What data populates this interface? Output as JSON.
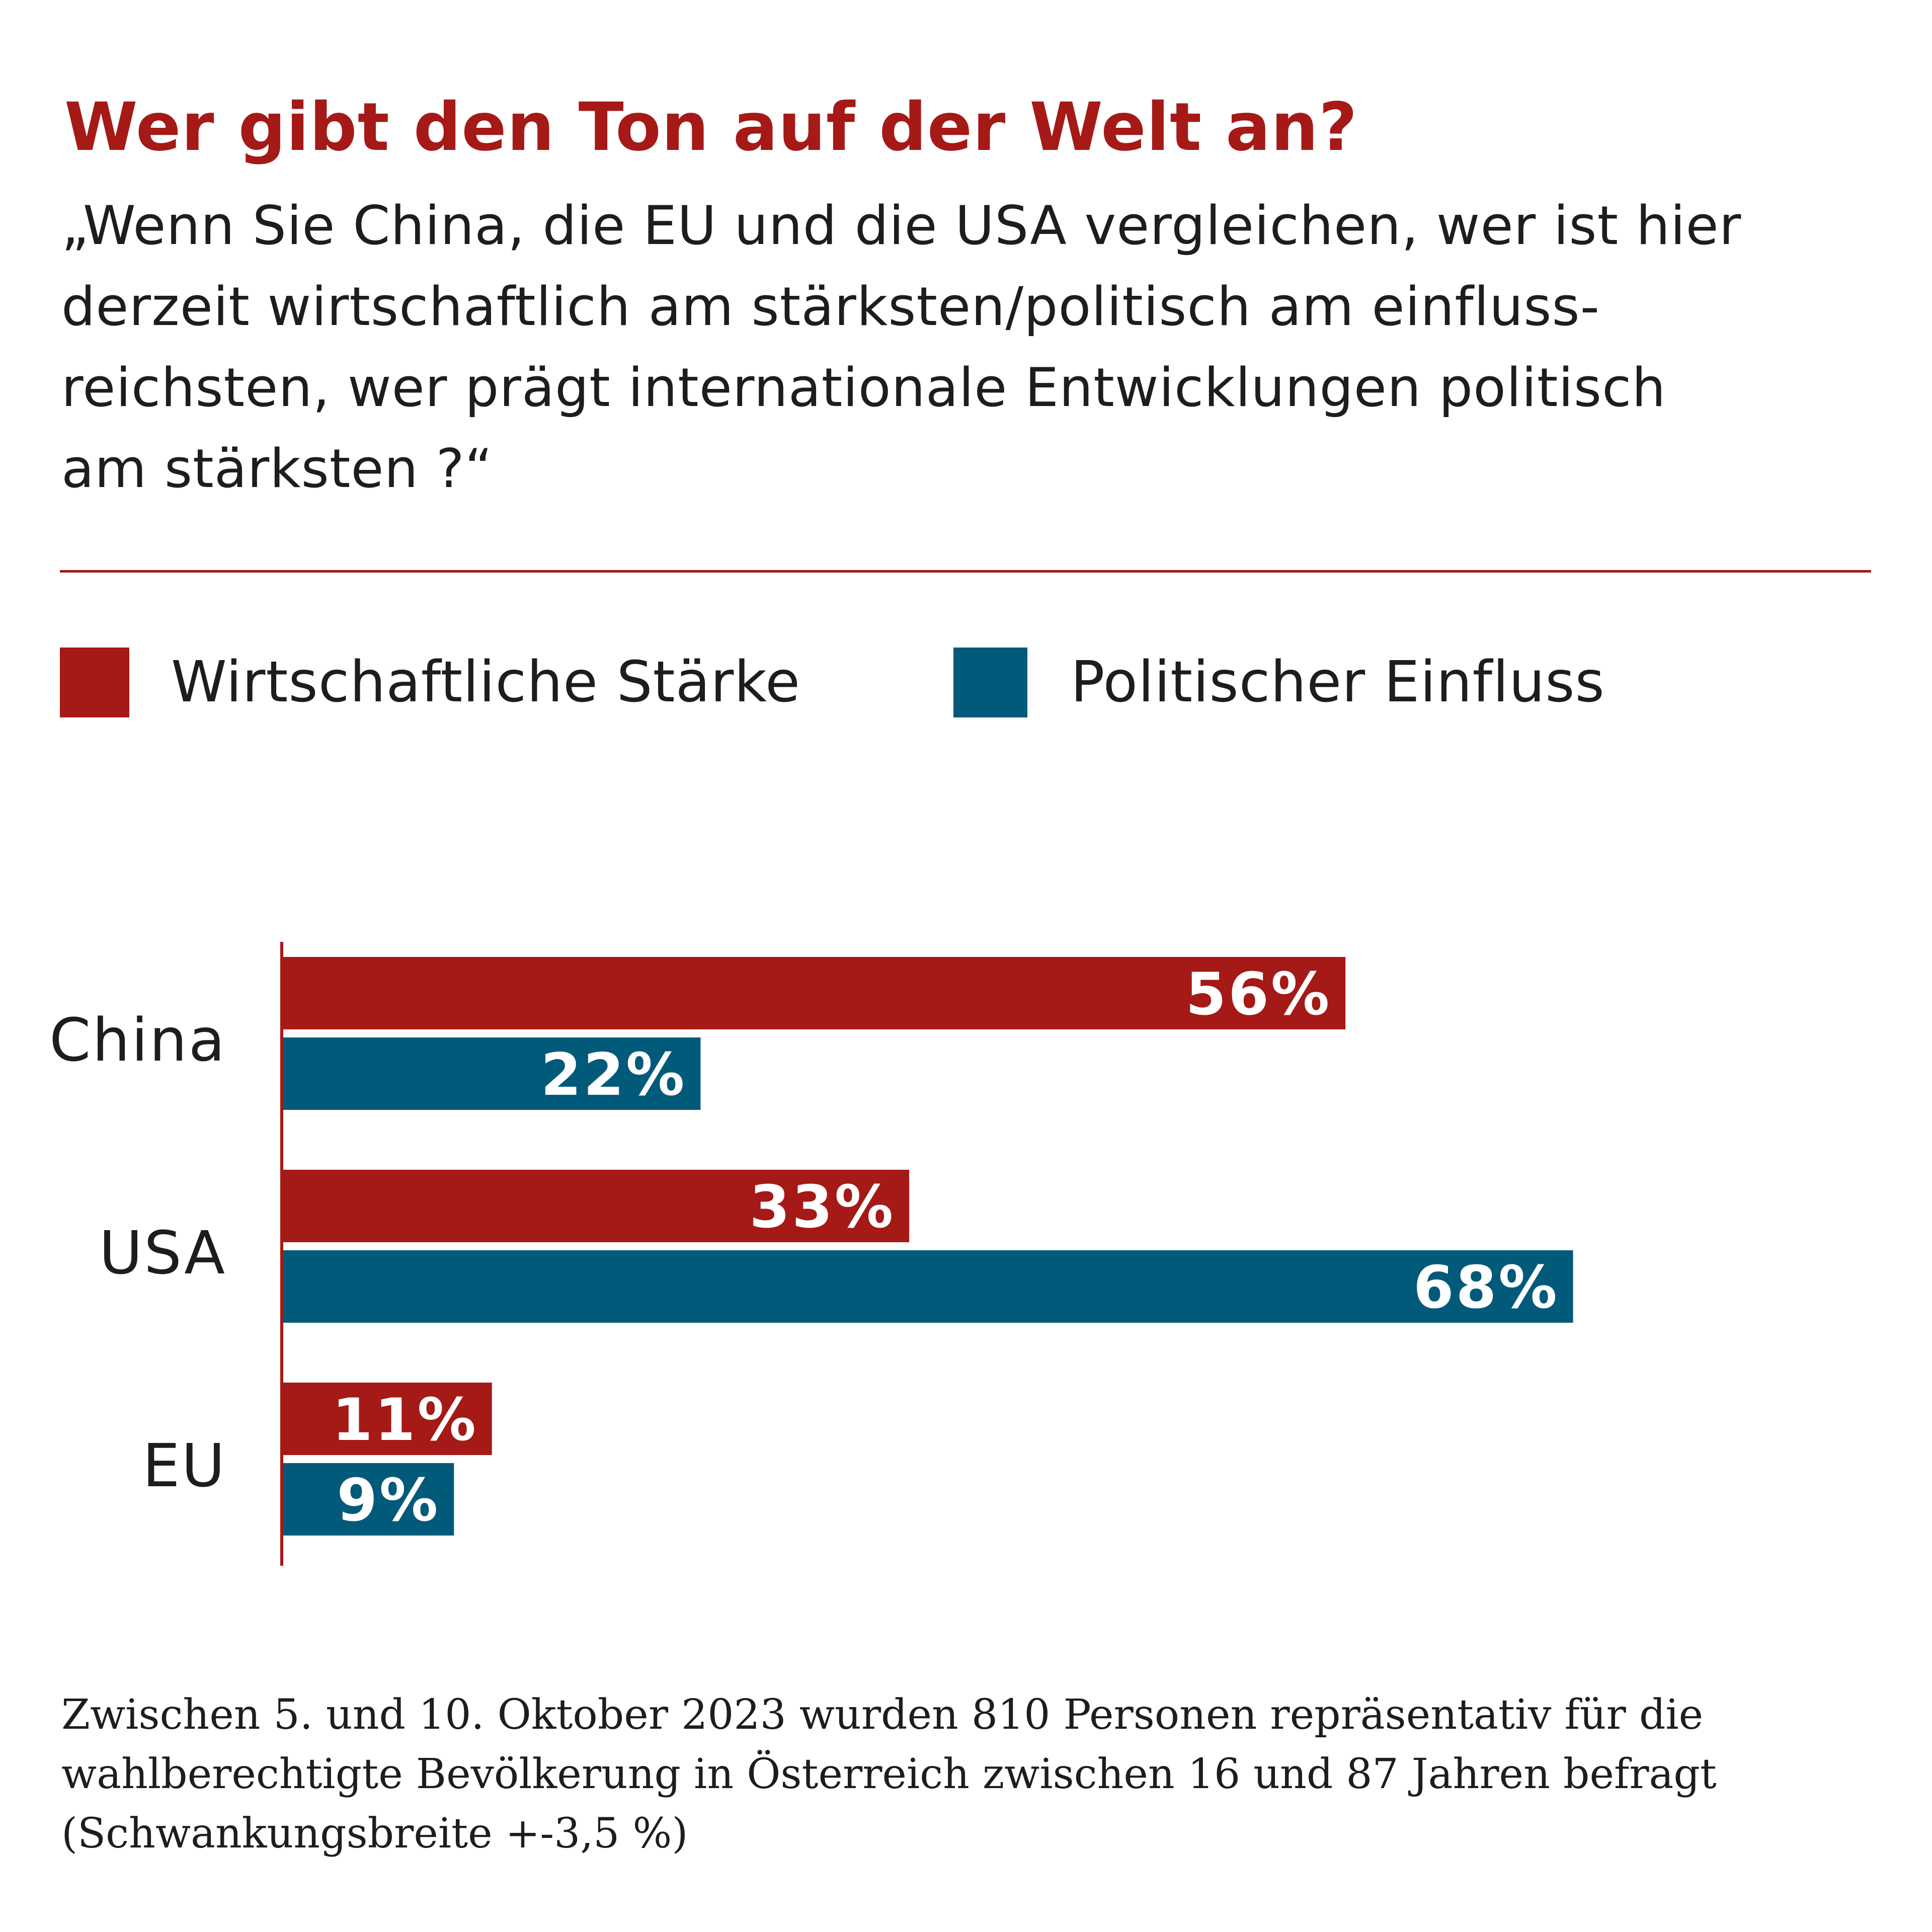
{
  "colors": {
    "accent_red": "#a51916",
    "accent_blue": "#025a7b",
    "text": "#1d1d1b",
    "bar_label": "#ffffff",
    "background": "#ffffff"
  },
  "header": {
    "title": "Wer gibt den Ton auf der Welt an?",
    "question_lines": [
      "„Wenn Sie China, die EU und die USA vergleichen, wer ist hier",
      "derzeit wirtschaftlich am stärksten/politisch am einfluss-",
      "reichsten, wer prägt internationale Entwicklungen politisch",
      "am stärksten ?“"
    ]
  },
  "legend": {
    "items": [
      {
        "label": "Wirtschaftliche Stärke",
        "color": "#a51916"
      },
      {
        "label": "Politischer Einfluss",
        "color": "#025a7b"
      }
    ]
  },
  "chart_data": {
    "type": "bar",
    "orientation": "horizontal",
    "title": "Wer gibt den Ton auf der Welt an?",
    "xlabel": "",
    "ylabel": "",
    "unit": "%",
    "xlim": [
      0,
      100
    ],
    "grid": false,
    "legend_position": "top-left",
    "categories": [
      "China",
      "USA",
      "EU"
    ],
    "series": [
      {
        "name": "Wirtschaftliche Stärke",
        "color": "#a51916",
        "values": [
          56,
          33,
          11
        ],
        "labels": [
          "56%",
          "33%",
          "11%"
        ]
      },
      {
        "name": "Politischer Einfluss",
        "color": "#025a7b",
        "values": [
          22,
          68,
          9
        ],
        "labels": [
          "22%",
          "68%",
          "9%"
        ]
      }
    ]
  },
  "footnote": {
    "lines": [
      "Zwischen 5. und 10. Oktober 2023 wurden 810 Personen repräsentativ für die",
      "wahlberechtigte Bevölkerung in Österreich zwischen 16 und 87 Jahren befragt",
      "(Schwankungsbreite +-3,5 %)"
    ]
  }
}
